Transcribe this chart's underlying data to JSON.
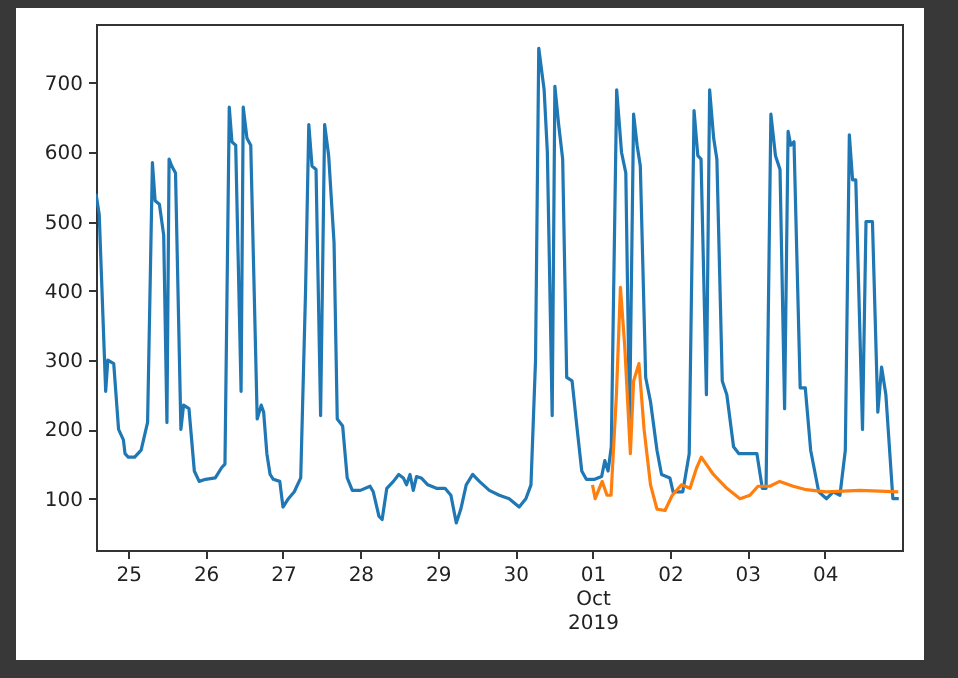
{
  "chart_data": {
    "type": "line",
    "xlim": [
      "2019-09-24T14:00",
      "2019-10-05T00:00"
    ],
    "ylim": [
      26,
      785
    ],
    "xticks": [
      {
        "value": "2019-09-25T00:00",
        "label": "25"
      },
      {
        "value": "2019-09-26T00:00",
        "label": "26"
      },
      {
        "value": "2019-09-27T00:00",
        "label": "27"
      },
      {
        "value": "2019-09-28T00:00",
        "label": "28"
      },
      {
        "value": "2019-09-29T00:00",
        "label": "29"
      },
      {
        "value": "2019-09-30T00:00",
        "label": "30"
      },
      {
        "value": "2019-10-01T00:00",
        "label": "01\nOct\n2019"
      },
      {
        "value": "2019-10-02T00:00",
        "label": "02"
      },
      {
        "value": "2019-10-03T00:00",
        "label": "03"
      },
      {
        "value": "2019-10-04T00:00",
        "label": "04"
      }
    ],
    "yticks": [
      100,
      200,
      300,
      400,
      500,
      600,
      700
    ],
    "series": [
      {
        "color": "#1f77b4",
        "x": [
          "2019-09-24T14:00",
          "2019-09-24T15:00",
          "2019-09-24T17:00",
          "2019-09-24T17:40",
          "2019-09-24T19:30",
          "2019-09-24T21:00",
          "2019-09-24T22:30",
          "2019-09-24T23:00",
          "2019-09-25T00:00",
          "2019-09-25T02:00",
          "2019-09-25T04:00",
          "2019-09-25T06:00",
          "2019-09-25T07:30",
          "2019-09-25T08:20",
          "2019-09-25T09:40",
          "2019-09-25T11:00",
          "2019-09-25T12:00",
          "2019-09-25T12:40",
          "2019-09-25T13:30",
          "2019-09-25T14:40",
          "2019-09-25T16:20",
          "2019-09-25T17:10",
          "2019-09-25T18:50",
          "2019-09-25T20:30",
          "2019-09-25T22:00",
          "2019-09-26T00:00",
          "2019-09-26T03:00",
          "2019-09-26T05:00",
          "2019-09-26T06:00",
          "2019-09-26T07:20",
          "2019-09-26T08:10",
          "2019-09-26T09:20",
          "2019-09-26T11:00",
          "2019-09-26T11:40",
          "2019-09-26T12:50",
          "2019-09-26T14:00",
          "2019-09-26T16:00",
          "2019-09-26T17:15",
          "2019-09-26T18:00",
          "2019-09-26T19:00",
          "2019-09-26T20:00",
          "2019-09-26T21:00",
          "2019-09-26T23:00",
          "2019-09-27T00:00",
          "2019-09-27T01:40",
          "2019-09-27T03:30",
          "2019-09-27T05:30",
          "2019-09-27T07:00",
          "2019-09-27T08:00",
          "2019-09-27T09:00",
          "2019-09-27T10:15",
          "2019-09-27T11:40",
          "2019-09-27T12:55",
          "2019-09-27T14:10",
          "2019-09-27T15:50",
          "2019-09-27T16:50",
          "2019-09-27T18:30",
          "2019-09-27T19:55",
          "2019-09-27T21:30",
          "2019-09-28T00:00",
          "2019-09-28T03:00",
          "2019-09-28T04:00",
          "2019-09-28T05:45",
          "2019-09-28T06:45",
          "2019-09-28T08:12",
          "2019-09-28T10:15",
          "2019-09-28T11:54",
          "2019-09-28T13:20",
          "2019-09-28T14:20",
          "2019-09-28T15:24",
          "2019-09-28T16:25",
          "2019-09-28T17:25",
          "2019-09-28T18:52",
          "2019-09-28T20:55",
          "2019-09-28T23:35",
          "2019-09-29T02:15",
          "2019-09-29T04:05",
          "2019-09-29T05:45",
          "2019-09-29T07:10",
          "2019-09-29T08:50",
          "2019-09-29T10:50",
          "2019-09-29T12:55",
          "2019-09-29T16:00",
          "2019-09-29T19:05",
          "2019-09-29T22:10",
          "2019-09-30T01:15",
          "2019-09-30T03:20",
          "2019-09-30T04:55",
          "2019-09-30T06:20",
          "2019-09-30T07:20",
          "2019-09-30T09:00",
          "2019-09-30T10:00",
          "2019-09-30T11:30",
          "2019-09-30T12:20",
          "2019-09-30T13:30",
          "2019-09-30T14:45",
          "2019-09-30T16:00",
          "2019-09-30T17:40",
          "2019-09-30T19:15",
          "2019-09-30T20:40",
          "2019-09-30T22:05",
          "2019-10-01T00:40",
          "2019-10-01T02:50",
          "2019-10-01T03:50",
          "2019-10-01T04:50",
          "2019-10-01T05:50",
          "2019-10-01T07:30",
          "2019-10-01T09:00",
          "2019-10-01T10:20",
          "2019-10-01T11:30",
          "2019-10-01T12:45",
          "2019-10-01T13:50",
          "2019-10-01T14:50",
          "2019-10-01T16:30",
          "2019-10-01T18:00",
          "2019-10-01T20:00",
          "2019-10-01T21:25",
          "2019-10-02T00:00",
          "2019-10-02T01:00",
          "2019-10-02T04:00",
          "2019-10-02T06:00",
          "2019-10-02T07:30",
          "2019-10-02T08:40",
          "2019-10-02T09:40",
          "2019-10-02T11:20",
          "2019-10-02T12:20",
          "2019-10-02T13:35",
          "2019-10-02T14:35",
          "2019-10-02T16:15",
          "2019-10-02T17:40",
          "2019-10-02T19:45",
          "2019-10-02T21:25",
          "2019-10-03T00:30",
          "2019-10-03T03:00",
          "2019-10-03T04:40",
          "2019-10-03T05:50",
          "2019-10-03T07:20",
          "2019-10-03T08:45",
          "2019-10-03T10:10",
          "2019-10-03T11:35",
          "2019-10-03T12:40",
          "2019-10-03T13:30",
          "2019-10-03T14:30",
          "2019-10-03T16:25",
          "2019-10-03T18:00",
          "2019-10-03T19:40",
          "2019-10-03T22:10",
          "2019-10-04T00:35",
          "2019-10-04T02:40",
          "2019-10-04T04:45",
          "2019-10-04T06:25",
          "2019-10-04T07:40",
          "2019-10-04T08:40",
          "2019-10-04T09:40",
          "2019-10-04T11:45",
          "2019-10-04T12:50",
          "2019-10-04T14:50",
          "2019-10-04T16:30",
          "2019-10-04T17:40",
          "2019-10-04T19:00",
          "2019-10-04T21:10",
          "2019-10-04T23:00"
        ],
        "values": [
          540,
          510,
          255,
          300,
          295,
          200,
          185,
          165,
          160,
          160,
          170,
          210,
          585,
          530,
          525,
          480,
          210,
          590,
          580,
          570,
          200,
          235,
          230,
          140,
          125,
          128,
          130,
          145,
          150,
          665,
          615,
          610,
          255,
          665,
          620,
          610,
          215,
          235,
          225,
          165,
          135,
          128,
          125,
          88,
          100,
          110,
          130,
          400,
          640,
          580,
          575,
          220,
          640,
          595,
          470,
          215,
          205,
          130,
          112,
          112,
          118,
          110,
          75,
          70,
          115,
          125,
          135,
          130,
          120,
          135,
          112,
          132,
          130,
          120,
          115,
          115,
          105,
          65,
          85,
          120,
          135,
          125,
          112,
          105,
          100,
          88,
          100,
          120,
          300,
          750,
          690,
          600,
          220,
          695,
          640,
          590,
          275,
          270,
          200,
          140,
          128,
          128,
          132,
          155,
          140,
          175,
          690,
          600,
          570,
          210,
          655,
          610,
          580,
          275,
          240,
          170,
          135,
          130,
          110,
          110,
          165,
          660,
          595,
          590,
          250,
          690,
          620,
          590,
          270,
          250,
          175,
          165,
          165,
          165,
          115,
          115,
          655,
          595,
          575,
          230,
          630,
          610,
          615,
          260,
          260,
          170,
          110,
          100,
          110,
          105,
          170,
          625,
          560,
          560,
          200,
          500,
          500,
          225,
          290,
          250,
          100,
          100
        ]
      },
      {
        "color": "#ff7f0e",
        "x": [
          "2019-10-01T00:00",
          "2019-10-01T00:50",
          "2019-10-01T03:00",
          "2019-10-01T04:30",
          "2019-10-01T05:45",
          "2019-10-01T07:25",
          "2019-10-01T08:40",
          "2019-10-01T10:00",
          "2019-10-01T11:45",
          "2019-10-01T12:45",
          "2019-10-01T14:25",
          "2019-10-01T16:00",
          "2019-10-01T18:00",
          "2019-10-01T20:00",
          "2019-10-01T22:30",
          "2019-10-02T00:45",
          "2019-10-02T03:35",
          "2019-10-02T06:15",
          "2019-10-02T08:20",
          "2019-10-02T09:45",
          "2019-10-02T13:30",
          "2019-10-02T17:40",
          "2019-10-02T21:45",
          "2019-10-03T00:50",
          "2019-10-03T03:20",
          "2019-10-03T07:00",
          "2019-10-03T10:05",
          "2019-10-03T14:15",
          "2019-10-03T18:20",
          "2019-10-04T00:30",
          "2019-10-04T11:00",
          "2019-10-04T22:50"
        ],
        "values": [
          120,
          100,
          125,
          105,
          105,
          250,
          405,
          320,
          165,
          270,
          295,
          200,
          120,
          85,
          83,
          105,
          120,
          115,
          145,
          160,
          135,
          115,
          100,
          105,
          118,
          118,
          125,
          118,
          113,
          110,
          112,
          110
        ]
      }
    ]
  }
}
